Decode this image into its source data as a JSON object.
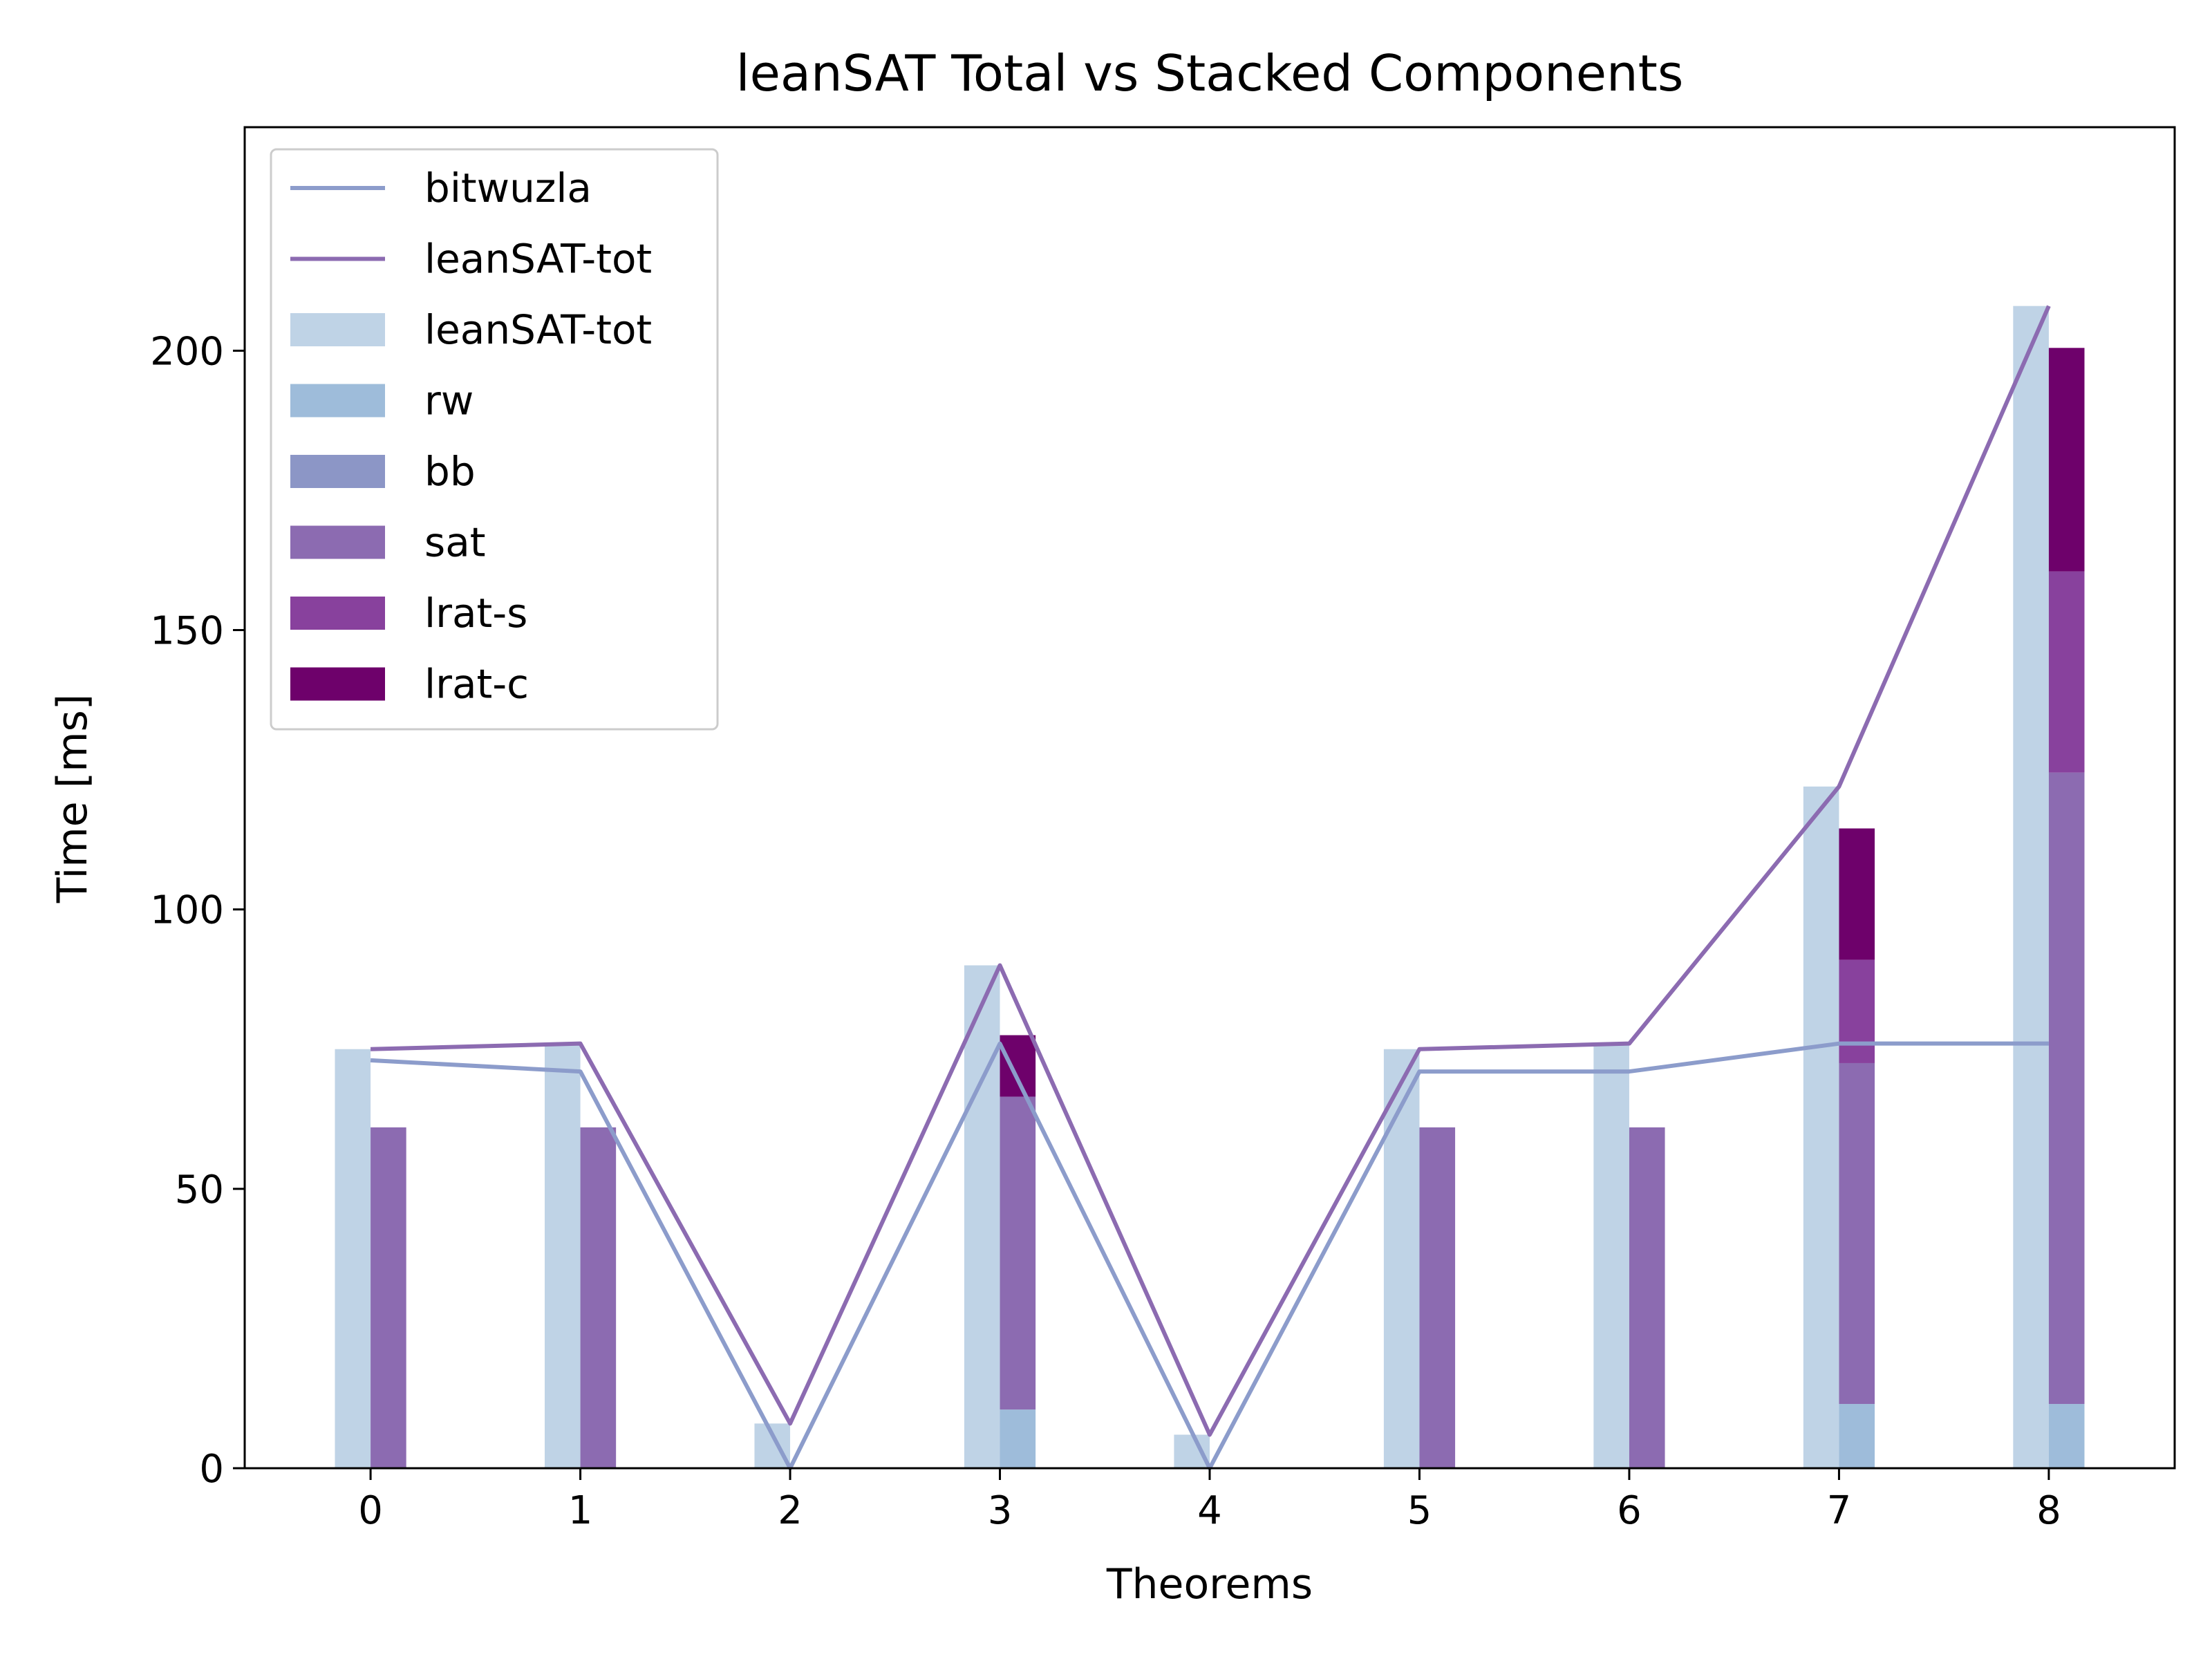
{
  "chart_data": {
    "type": "bar",
    "title": "leanSAT Total vs Stacked Components",
    "xlabel": "Theorems",
    "ylabel": "Time [ms]",
    "categories": [
      "0",
      "1",
      "2",
      "3",
      "4",
      "5",
      "6",
      "7",
      "8"
    ],
    "xlim": [
      -0.6,
      8.6
    ],
    "ylim": [
      0,
      240
    ],
    "yticks": [
      0,
      50,
      100,
      150,
      200
    ],
    "grid": false,
    "legend_position": "top-left",
    "lines": [
      {
        "name": "bitwuzla",
        "color": "#8c9ccb",
        "values": [
          73,
          71,
          0,
          76,
          0,
          71,
          71,
          76,
          76
        ]
      },
      {
        "name": "leanSAT-tot",
        "color": "#8c6bb1",
        "values": [
          75,
          76,
          8,
          90,
          6,
          75,
          76,
          122,
          208
        ]
      }
    ],
    "total_bars": {
      "name": "leanSAT-tot",
      "color": "#bfd3e6",
      "values": [
        75,
        76,
        8,
        90,
        6,
        75,
        76,
        122,
        208
      ]
    },
    "stacked_series": [
      {
        "name": "rw",
        "color": "#9ebcda",
        "values": [
          0,
          0,
          0,
          10.5,
          0,
          0,
          0,
          11.5,
          11.5
        ]
      },
      {
        "name": "bb",
        "color": "#8c96c6",
        "values": [
          0,
          0,
          0,
          0,
          0,
          0,
          0,
          0,
          0
        ]
      },
      {
        "name": "sat",
        "color": "#8c6bb1",
        "values": [
          61,
          61,
          0,
          56,
          0,
          61,
          61,
          61,
          113
        ]
      },
      {
        "name": "lrat-s",
        "color": "#88419d",
        "values": [
          0,
          0,
          0,
          0,
          0,
          0,
          0,
          18.5,
          36
        ]
      },
      {
        "name": "lrat-c",
        "color": "#6e016b",
        "values": [
          0,
          0,
          0,
          11,
          0,
          0,
          0,
          23.5,
          40
        ]
      }
    ],
    "legend": [
      {
        "label": "bitwuzla",
        "kind": "line",
        "color": "#8c9ccb"
      },
      {
        "label": "leanSAT-tot",
        "kind": "line",
        "color": "#8c6bb1"
      },
      {
        "label": "leanSAT-tot",
        "kind": "bar",
        "color": "#bfd3e6"
      },
      {
        "label": "rw",
        "kind": "bar",
        "color": "#9ebcda"
      },
      {
        "label": "bb",
        "kind": "bar",
        "color": "#8c96c6"
      },
      {
        "label": "sat",
        "kind": "bar",
        "color": "#8c6bb1"
      },
      {
        "label": "lrat-s",
        "kind": "bar",
        "color": "#88419d"
      },
      {
        "label": "lrat-c",
        "kind": "bar",
        "color": "#6e016b"
      }
    ]
  }
}
